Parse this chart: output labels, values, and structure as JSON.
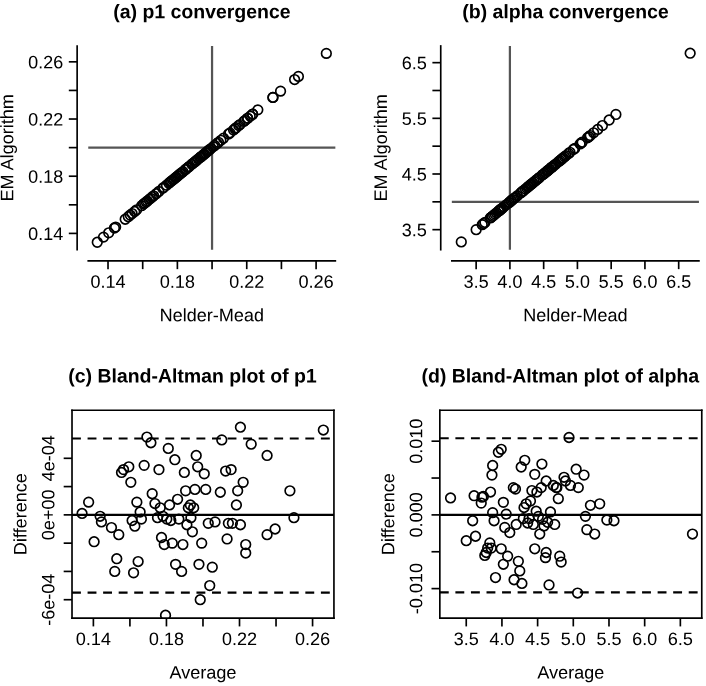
{
  "chart_data": [
    {
      "type": "scatter",
      "title": "(a) p1 convergence",
      "xlabel": "Nelder-Mead",
      "ylabel": "EM Algorithm",
      "marker": "circle",
      "grid": false,
      "x": [
        0.1338,
        0.1374,
        0.1404,
        0.1437,
        0.1444,
        0.1499,
        0.1517,
        0.1539,
        0.1528,
        0.1554,
        0.1565,
        0.1594,
        0.1605,
        0.162,
        0.1627,
        0.1612,
        0.1638,
        0.1645,
        0.1656,
        0.1663,
        0.1678,
        0.1693,
        0.1715,
        0.1722,
        0.1737,
        0.1751,
        0.1759,
        0.1766,
        0.1773,
        0.1781,
        0.1788,
        0.1795,
        0.1802,
        0.181,
        0.1817,
        0.1824,
        0.1832,
        0.1846,
        0.185,
        0.1861,
        0.1868,
        0.1883,
        0.189,
        0.1898,
        0.1905,
        0.1912,
        0.192,
        0.1931,
        0.1934,
        0.1942,
        0.1949,
        0.1956,
        0.1963,
        0.1971,
        0.1978,
        0.1985,
        0.1993,
        0.2007,
        0.2015,
        0.2029,
        0.2037,
        0.2051,
        0.2066,
        0.2095,
        0.2103,
        0.2124,
        0.2132,
        0.2139,
        0.2154,
        0.2161,
        0.2183,
        0.219,
        0.2205,
        0.2205,
        0.222,
        0.2234,
        0.2234,
        0.2264,
        0.2351,
        0.2351,
        0.2395,
        0.2476,
        0.2498,
        0.2659
      ],
      "series": [
        {
          "color": "#000000",
          "values": [
            0.1338,
            0.1374,
            0.1404,
            0.1437,
            0.1444,
            0.1499,
            0.1517,
            0.1539,
            0.1528,
            0.1554,
            0.1565,
            0.1594,
            0.1605,
            0.162,
            0.1627,
            0.1612,
            0.1638,
            0.1645,
            0.1656,
            0.1663,
            0.1678,
            0.1693,
            0.1715,
            0.1722,
            0.1737,
            0.1751,
            0.1759,
            0.1766,
            0.1773,
            0.1781,
            0.1788,
            0.1795,
            0.1802,
            0.181,
            0.1817,
            0.1824,
            0.1832,
            0.1846,
            0.185,
            0.1861,
            0.1868,
            0.1883,
            0.189,
            0.1898,
            0.1905,
            0.1912,
            0.192,
            0.1931,
            0.1934,
            0.1942,
            0.1949,
            0.1956,
            0.1963,
            0.1971,
            0.1978,
            0.1985,
            0.1993,
            0.2007,
            0.2015,
            0.2029,
            0.2037,
            0.2051,
            0.2066,
            0.2095,
            0.2103,
            0.2124,
            0.2132,
            0.2139,
            0.2154,
            0.2161,
            0.2183,
            0.219,
            0.2205,
            0.2205,
            0.222,
            0.2234,
            0.2234,
            0.2264,
            0.2351,
            0.2351,
            0.2395,
            0.2476,
            0.2498,
            0.2659
          ]
        }
      ],
      "ref_lines": [
        {
          "axis": "x",
          "value": 0.2,
          "color": "#555555",
          "line_style": "solid"
        },
        {
          "axis": "y",
          "value": 0.2,
          "color": "#555555",
          "line_style": "solid"
        }
      ],
      "xlim": [
        0.1286,
        0.2711
      ],
      "ylim": [
        0.1286,
        0.2711
      ],
      "xticks": [
        0.14,
        {
          "value": 0.16,
          "label": null
        },
        0.18,
        {
          "value": 0.2,
          "label": null
        },
        0.22,
        {
          "value": 0.24,
          "label": null
        },
        0.26
      ],
      "yticks": [
        0.14,
        {
          "value": 0.16,
          "label": null
        },
        0.18,
        {
          "value": 0.2,
          "label": null
        },
        0.22,
        {
          "value": 0.24,
          "label": null
        },
        0.26
      ]
    },
    {
      "type": "scatter",
      "title": "(b) alpha convergence",
      "xlabel": "Nelder-Mead",
      "ylabel": "EM Algorithm",
      "marker": "circle",
      "grid": false,
      "x": [
        3.28,
        3.5,
        3.59,
        3.63,
        3.61,
        3.71,
        3.72,
        3.74,
        3.78,
        3.76,
        3.8,
        3.83,
        3.85,
        3.84,
        3.86,
        3.87,
        3.87,
        3.89,
        3.91,
        3.95,
        3.99,
        3.99,
        4.02,
        4.02,
        4.04,
        4.06,
        4.08,
        4.11,
        4.16,
        4.17,
        4.19,
        4.2,
        4.23,
        4.25,
        4.27,
        4.28,
        4.3,
        4.31,
        4.32,
        4.34,
        4.36,
        4.38,
        4.4,
        4.42,
        4.44,
        4.48,
        4.49,
        4.51,
        4.53,
        4.55,
        4.56,
        4.57,
        4.59,
        4.61,
        4.62,
        4.62,
        4.64,
        4.66,
        4.68,
        4.72,
        4.74,
        4.76,
        4.77,
        4.79,
        4.81,
        4.83,
        4.87,
        4.89,
        4.94,
        4.96,
        5.04,
        5.06,
        5.07,
        5.15,
        5.17,
        5.19,
        5.24,
        5.3,
        5.37,
        5.47,
        5.57,
        6.67
      ],
      "series": [
        {
          "color": "#000000",
          "values": [
            3.28,
            3.5,
            3.59,
            3.63,
            3.61,
            3.71,
            3.72,
            3.74,
            3.78,
            3.76,
            3.8,
            3.83,
            3.85,
            3.84,
            3.86,
            3.87,
            3.87,
            3.89,
            3.91,
            3.95,
            3.99,
            3.99,
            4.02,
            4.02,
            4.04,
            4.06,
            4.08,
            4.11,
            4.16,
            4.17,
            4.19,
            4.2,
            4.23,
            4.25,
            4.27,
            4.28,
            4.3,
            4.31,
            4.32,
            4.34,
            4.36,
            4.38,
            4.4,
            4.42,
            4.44,
            4.48,
            4.49,
            4.51,
            4.53,
            4.55,
            4.56,
            4.57,
            4.59,
            4.61,
            4.62,
            4.62,
            4.64,
            4.66,
            4.68,
            4.72,
            4.74,
            4.76,
            4.77,
            4.79,
            4.81,
            4.83,
            4.87,
            4.89,
            4.94,
            4.96,
            5.04,
            5.06,
            5.07,
            5.15,
            5.17,
            5.19,
            5.24,
            5.3,
            5.37,
            5.47,
            5.57,
            6.67
          ]
        }
      ],
      "ref_lines": [
        {
          "axis": "x",
          "value": 4.0,
          "color": "#555555",
          "line_style": "solid"
        },
        {
          "axis": "y",
          "value": 4.0,
          "color": "#555555",
          "line_style": "solid"
        }
      ],
      "xlim": [
        3.14,
        6.8
      ],
      "ylim": [
        3.14,
        6.8
      ],
      "xticks": [
        3.5,
        {
          "value": 4.0,
          "label": "4.0"
        },
        4.5,
        {
          "value": 5.0,
          "label": "5.0"
        },
        5.5,
        {
          "value": 6.0,
          "label": "6.0"
        },
        6.5
      ],
      "yticks": [
        3.5,
        {
          "value": 4.0,
          "label": null
        },
        4.5,
        {
          "value": 5.0,
          "label": null
        },
        5.5,
        {
          "value": 6.0,
          "label": null
        },
        6.5
      ]
    },
    {
      "type": "scatter",
      "title": "(c) Bland-Altman plot of p1",
      "xlabel": "Average",
      "ylabel": "Difference",
      "marker": "circle",
      "grid": false,
      "x": [
        0.1338,
        0.1374,
        0.1404,
        0.1437,
        0.1444,
        0.1499,
        0.1517,
        0.1539,
        0.1528,
        0.1554,
        0.1565,
        0.1594,
        0.1605,
        0.162,
        0.1627,
        0.1612,
        0.1638,
        0.1645,
        0.1656,
        0.1663,
        0.1678,
        0.1693,
        0.1715,
        0.1722,
        0.1737,
        0.1751,
        0.1759,
        0.1766,
        0.1773,
        0.1781,
        0.1788,
        0.1795,
        0.1802,
        0.181,
        0.1817,
        0.1824,
        0.1832,
        0.1846,
        0.185,
        0.1861,
        0.1868,
        0.1883,
        0.189,
        0.1898,
        0.1905,
        0.1912,
        0.192,
        0.1931,
        0.1934,
        0.1942,
        0.1949,
        0.1956,
        0.1963,
        0.1971,
        0.1978,
        0.1985,
        0.1993,
        0.2007,
        0.2015,
        0.2029,
        0.2037,
        0.2051,
        0.2066,
        0.2095,
        0.2103,
        0.2124,
        0.2132,
        0.2139,
        0.2154,
        0.2161,
        0.2183,
        0.219,
        0.2205,
        0.2205,
        0.222,
        0.2234,
        0.2234,
        0.2264,
        0.2351,
        0.2351,
        0.2395,
        0.2476,
        0.2498,
        0.2659
      ],
      "series": [
        {
          "color": "#000000",
          "values": [
            1e-05,
            9e-05,
            -0.00019,
            -1e-05,
            -5e-05,
            -9e-05,
            -0.0004,
            -0.00014,
            -0.00031,
            0.0003,
            0.00032,
            0.00034,
            0.00023,
            -0.00041,
            -8e-05,
            -4e-05,
            9e-05,
            -0.00033,
            2e-05,
            -3e-05,
            0.00035,
            0.00055,
            0.00051,
            0.00015,
            8e-05,
            -2e-05,
            0.00032,
            5e-05,
            -0.00016,
            -1e-05,
            -0.00021,
            -0.00071,
            -3e-05,
            0.00047,
            7e-05,
            -4e-05,
            -0.0002,
            0.00039,
            -0.00035,
            0.00011,
            -3e-05,
            -0.0004,
            -0.00021,
            0.0003,
            0.00017,
            -7e-05,
            5e-05,
            7e-05,
            -2e-05,
            -0.00012,
            5e-05,
            0.00018,
            0.00042,
            0.00034,
            -0.00035,
            -0.0006,
            -0.0002,
            0.00029,
            0.00018,
            -6e-05,
            -0.0005,
            -0.00037,
            -5e-05,
            0.00016,
            0.00053,
            0.00031,
            -0.00017,
            -6e-05,
            0.00032,
            -6e-05,
            7e-05,
            0.00017,
            -7e-05,
            0.00062,
            0.00023,
            -0.00021,
            -0.00027,
            0.0005,
            0.00042,
            -0.00014,
            -0.0001,
            0.00017,
            -2e-05,
            0.0006
          ]
        }
      ],
      "ref_lines": [
        {
          "axis": "y",
          "value": 0,
          "color": "#000000",
          "line_style": "solid"
        },
        {
          "axis": "y",
          "value": 0.00054,
          "color": "#000000",
          "line_style": "dashed"
        },
        {
          "axis": "y",
          "value": -0.00055,
          "color": "#000000",
          "line_style": "dashed"
        }
      ],
      "xlim": [
        0.1283,
        0.2717
      ],
      "ylim": [
        -0.00073,
        0.00074
      ],
      "xticks": [
        0.14,
        {
          "value": 0.16,
          "label": null
        },
        0.18,
        {
          "value": 0.2,
          "label": null
        },
        0.22,
        {
          "value": 0.24,
          "label": null
        },
        0.26
      ],
      "yticks": [
        {
          "value": -0.0006,
          "label": "-6e-04"
        },
        {
          "value": -0.0004,
          "label": null
        },
        {
          "value": -0.0002,
          "label": null
        },
        {
          "value": 0,
          "label": "0e+00"
        },
        {
          "value": 0.0002,
          "label": null
        },
        {
          "value": 0.0004,
          "label": "4e-04"
        }
      ]
    },
    {
      "type": "scatter",
      "title": "(d) Bland-Altman plot of alpha",
      "xlabel": "Average",
      "ylabel": "Difference",
      "marker": "circle",
      "grid": false,
      "x": [
        3.28,
        3.5,
        3.59,
        3.63,
        3.61,
        3.71,
        3.72,
        3.74,
        3.78,
        3.76,
        3.8,
        3.83,
        3.85,
        3.84,
        3.86,
        3.87,
        3.87,
        3.89,
        3.91,
        3.95,
        3.99,
        3.99,
        4.02,
        4.02,
        4.04,
        4.06,
        4.08,
        4.11,
        4.16,
        4.17,
        4.19,
        4.2,
        4.23,
        4.25,
        4.27,
        4.28,
        4.3,
        4.31,
        4.32,
        4.34,
        4.36,
        4.38,
        4.4,
        4.42,
        4.44,
        4.46,
        4.46,
        4.48,
        4.49,
        4.51,
        4.53,
        4.55,
        4.56,
        4.57,
        4.59,
        4.61,
        4.62,
        4.62,
        4.64,
        4.66,
        4.68,
        4.72,
        4.74,
        4.76,
        4.77,
        4.79,
        4.81,
        4.83,
        4.87,
        4.89,
        4.94,
        4.96,
        5.04,
        5.06,
        5.07,
        5.15,
        5.17,
        5.19,
        5.24,
        5.3,
        5.37,
        5.47,
        5.57,
        6.67
      ],
      "series": [
        {
          "color": "#000000",
          "values": [
            0.0023,
            -0.0035,
            -0.0008,
            -0.0029,
            0.0026,
            0.0016,
            0.0024,
            0.0025,
            -0.0051,
            -0.0055,
            -0.0045,
            -0.0038,
            -0.0045,
            0.0031,
            0.0054,
            0.0067,
            0.0003,
            -0.0008,
            -0.0085,
            0.0085,
            0.0089,
            -0.0046,
            0.0017,
            -0.0067,
            -0.0017,
            0.0001,
            -0.0056,
            -0.0024,
            0.0037,
            -0.0088,
            0.0035,
            -0.0013,
            -0.0063,
            -0.0076,
            0.0065,
            -0.0093,
            -0.0005,
            0.001,
            0.0074,
            0.0015,
            -0.0011,
            -0.0005,
            0.0019,
            0.0033,
            -0.0013,
            0.0055,
            -0.0046,
            0.0005,
            0.0031,
            -0.0002,
            -0.0026,
            0.0037,
            0.0069,
            -0.0006,
            -0.0015,
            -0.0058,
            0.0046,
            -0.0051,
            -0.001,
            -0.0095,
            0.0004,
            0.004,
            -0.0013,
            0.0037,
            0.0037,
            0.0022,
            -0.0056,
            -0.0064,
            0.0051,
            0.0046,
            0.0105,
            0.004,
            0.0062,
            -0.0106,
            0.0037,
            0.0054,
            -0.0002,
            -0.002,
            0.0013,
            -0.0026,
            0.0015,
            -0.0007,
            -0.0008,
            -0.0026
          ]
        }
      ],
      "ref_lines": [
        {
          "axis": "y",
          "value": 0,
          "color": "#000000",
          "line_style": "solid"
        },
        {
          "axis": "y",
          "value": 0.0104,
          "color": "#000000",
          "line_style": "dashed"
        },
        {
          "axis": "y",
          "value": -0.0105,
          "color": "#000000",
          "line_style": "dashed"
        }
      ],
      "xlim": [
        3.13,
        6.8
      ],
      "ylim": [
        -0.014,
        0.0142
      ],
      "xticks": [
        3.5,
        {
          "value": 4.0,
          "label": "4.0"
        },
        4.5,
        {
          "value": 5.0,
          "label": "5.0"
        },
        5.5,
        {
          "value": 6.0,
          "label": "6.0"
        },
        6.5
      ],
      "yticks": [
        {
          "value": -0.01,
          "label": "-0.010"
        },
        {
          "value": -0.005,
          "label": null
        },
        {
          "value": 0,
          "label": "0.000"
        },
        {
          "value": 0.005,
          "label": null
        },
        {
          "value": 0.01,
          "label": "0.010"
        }
      ]
    }
  ]
}
